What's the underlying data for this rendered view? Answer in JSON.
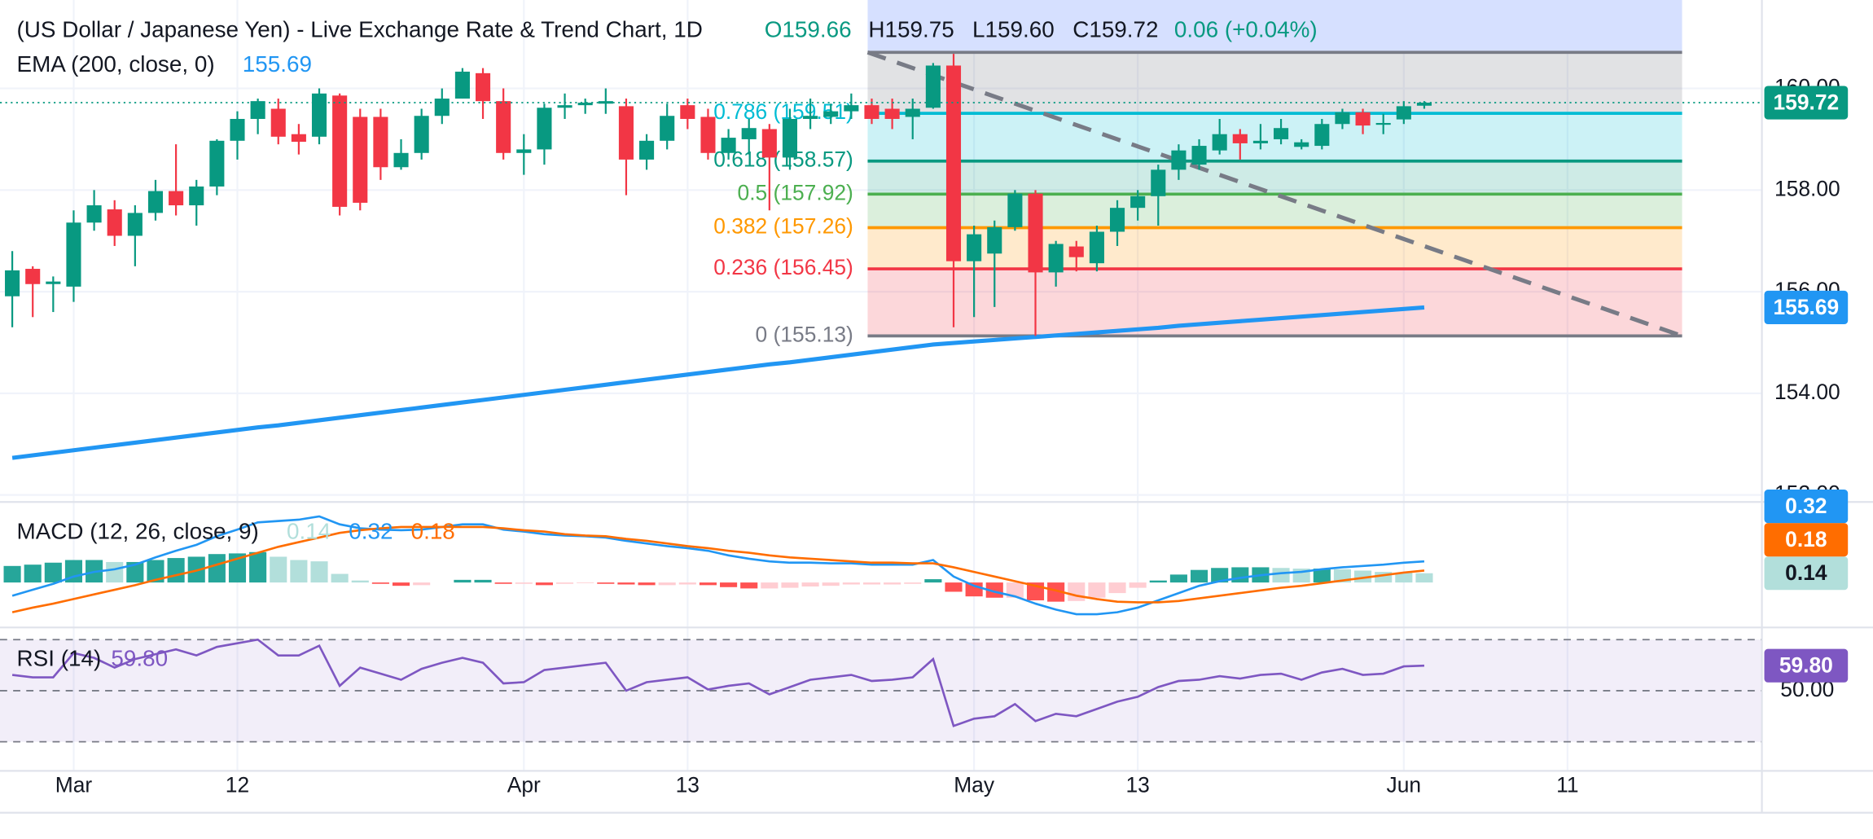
{
  "chart_data": [
    {
      "type": "candlestick",
      "title": "(US Dollar / Japanese Yen) - Live Exchange Rate & Trend Chart, 1D",
      "ohlc_legend": [
        "O159.66",
        "H159.75",
        "L159.60",
        "C159.72",
        "0.06 (+0.04%)"
      ],
      "x": [
        0,
        1,
        2,
        3,
        4,
        5,
        6,
        7,
        8,
        9,
        10,
        11,
        12,
        13,
        14,
        15,
        16,
        17,
        18,
        19,
        20,
        21,
        22,
        23,
        24,
        25,
        26,
        27,
        28,
        29,
        30,
        31,
        32,
        33,
        34,
        35,
        36,
        37,
        38,
        39,
        40,
        41,
        42,
        43,
        44,
        45,
        46,
        47,
        48,
        49,
        50,
        51,
        52,
        53,
        54,
        55,
        56,
        57,
        58,
        59,
        60,
        61,
        62,
        63,
        64,
        65,
        66,
        67,
        68,
        69
      ],
      "open": [
        155.91,
        156.45,
        156.15,
        156.1,
        157.36,
        157.62,
        157.1,
        157.55,
        157.98,
        157.7,
        158.07,
        158.97,
        159.4,
        159.6,
        159.1,
        159.05,
        159.86,
        159.44,
        159.44,
        158.45,
        158.73,
        159.46,
        159.8,
        160.3,
        159.75,
        158.73,
        158.8,
        159.62,
        159.67,
        159.7,
        159.65,
        158.6,
        158.97,
        159.67,
        159.44,
        158.73,
        159.0,
        159.2,
        158.64,
        159.4,
        159.44,
        159.55,
        159.67,
        159.6,
        159.44,
        159.62,
        160.45,
        156.6,
        156.75,
        157.27,
        157.93,
        156.38,
        156.89,
        156.56,
        157.18,
        157.65,
        157.88,
        158.4,
        158.5,
        158.78,
        159.1,
        158.92,
        159.0,
        158.85,
        158.87,
        159.3,
        159.53,
        159.3,
        159.39,
        159.66
      ],
      "high": [
        156.8,
        156.5,
        156.3,
        157.6,
        158.0,
        157.8,
        157.7,
        158.2,
        158.9,
        158.2,
        159.0,
        159.55,
        159.8,
        159.8,
        159.3,
        160.0,
        159.9,
        159.6,
        159.6,
        159.0,
        159.6,
        160.0,
        160.4,
        160.4,
        160.0,
        159.1,
        159.7,
        159.9,
        159.8,
        160.0,
        159.8,
        159.1,
        159.7,
        159.8,
        159.6,
        159.2,
        159.4,
        159.3,
        159.6,
        159.8,
        159.7,
        159.9,
        159.8,
        159.8,
        159.8,
        160.5,
        160.68,
        157.3,
        157.4,
        158.0,
        158.0,
        157.0,
        157.0,
        157.3,
        157.8,
        158.0,
        158.5,
        158.9,
        159.0,
        159.4,
        159.2,
        159.3,
        159.4,
        159.0,
        159.4,
        159.6,
        159.6,
        159.5,
        159.75,
        159.75
      ],
      "low": [
        155.3,
        155.5,
        155.6,
        155.8,
        157.2,
        156.9,
        156.5,
        157.4,
        157.5,
        157.3,
        157.9,
        158.6,
        159.1,
        158.9,
        158.7,
        158.9,
        157.5,
        157.6,
        158.2,
        158.4,
        158.6,
        159.3,
        159.8,
        159.4,
        158.6,
        158.3,
        158.5,
        159.4,
        159.5,
        159.5,
        157.9,
        158.4,
        158.8,
        159.2,
        158.6,
        158.6,
        158.7,
        157.6,
        158.4,
        159.2,
        159.3,
        159.4,
        159.3,
        159.2,
        159.0,
        159.6,
        155.3,
        155.5,
        155.7,
        157.2,
        155.13,
        156.1,
        156.4,
        156.4,
        156.9,
        157.4,
        157.3,
        158.2,
        158.4,
        158.7,
        158.6,
        158.8,
        158.9,
        158.8,
        158.8,
        159.2,
        159.1,
        159.1,
        159.3,
        159.6
      ],
      "close": [
        156.42,
        156.15,
        156.2,
        157.36,
        157.7,
        157.1,
        157.55,
        157.98,
        157.7,
        158.07,
        158.97,
        159.4,
        159.75,
        159.05,
        158.95,
        159.9,
        157.67,
        157.75,
        158.45,
        158.73,
        159.46,
        159.8,
        160.33,
        159.75,
        158.73,
        158.8,
        159.62,
        159.67,
        159.72,
        159.75,
        158.6,
        158.97,
        159.46,
        159.4,
        158.73,
        159.03,
        159.22,
        158.64,
        159.4,
        159.46,
        159.55,
        159.67,
        159.4,
        159.4,
        159.6,
        160.45,
        156.6,
        157.13,
        157.27,
        157.93,
        156.38,
        156.94,
        156.68,
        157.18,
        157.65,
        157.88,
        158.4,
        158.78,
        158.87,
        159.1,
        158.92,
        158.97,
        159.22,
        158.94,
        159.3,
        159.53,
        159.27,
        159.32,
        159.65,
        159.72
      ],
      "up_color": "#089981",
      "down_color": "#f23645",
      "series": [
        {
          "name": "EMA (200, close, 0)",
          "color": "#2196f3",
          "values": [
            152.73,
            152.78,
            152.83,
            152.88,
            152.93,
            152.98,
            153.03,
            153.08,
            153.13,
            153.18,
            153.23,
            153.28,
            153.33,
            153.37,
            153.42,
            153.47,
            153.52,
            153.57,
            153.62,
            153.67,
            153.72,
            153.77,
            153.82,
            153.87,
            153.92,
            153.97,
            154.02,
            154.07,
            154.12,
            154.17,
            154.22,
            154.27,
            154.32,
            154.37,
            154.42,
            154.47,
            154.52,
            154.57,
            154.61,
            154.66,
            154.71,
            154.76,
            154.81,
            154.86,
            154.91,
            154.96,
            154.99,
            155.02,
            155.05,
            155.08,
            155.11,
            155.14,
            155.17,
            155.2,
            155.23,
            155.26,
            155.29,
            155.33,
            155.36,
            155.39,
            155.42,
            155.45,
            155.48,
            155.51,
            155.54,
            155.57,
            155.6,
            155.63,
            155.66,
            155.69
          ]
        }
      ],
      "fibonacci": {
        "x": [
          41.8,
          81.6
        ],
        "top": 160.71,
        "top_color": "#787b86",
        "levels": [
          {
            "label": "0.786 (159.51)",
            "value": 159.51,
            "color": "#00bcd4"
          },
          {
            "label": "0.618 (158.57)",
            "value": 158.57,
            "color": "#089981"
          },
          {
            "label": "0.5 (157.92)",
            "value": 157.92,
            "color": "#4caf50"
          },
          {
            "label": "0.382 (157.26)",
            "value": 157.26,
            "color": "#ff9800"
          },
          {
            "label": "0.236 (156.45)",
            "value": 156.45,
            "color": "#f23645"
          },
          {
            "label": "0 (155.13)",
            "value": 155.13,
            "color": "#787b86"
          }
        ]
      },
      "trendline": {
        "x": [
          41.8,
          81.6
        ],
        "values": [
          160.71,
          155.13
        ],
        "color": "#787b86"
      },
      "xlim": [
        -0.6,
        85.5
      ],
      "xticks": [
        {
          "value": 3,
          "label": "Mar"
        },
        {
          "value": 11,
          "label": "12"
        },
        {
          "value": 25,
          "label": "Apr"
        },
        {
          "value": 33,
          "label": "13"
        },
        {
          "value": 47,
          "label": "May"
        },
        {
          "value": 55,
          "label": "13"
        },
        {
          "value": 68,
          "label": "Jun"
        },
        {
          "value": 76,
          "label": "11"
        }
      ],
      "ylim": [
        151.98,
        161.74
      ],
      "yticks": [
        {
          "value": 152,
          "label": "152.00"
        },
        {
          "value": 154,
          "label": "154.00"
        },
        {
          "value": 156,
          "label": "156.00"
        },
        {
          "value": 158,
          "label": "158.00"
        },
        {
          "value": 160,
          "label": "160.00"
        }
      ],
      "grid": true
    },
    {
      "type": "macd",
      "title": "MACD (12, 26, close, 9)",
      "series": [
        {
          "kind": "histogram",
          "color": "#b2dfdb",
          "bar_colors": [
            "#26a69a",
            "#b2dfdb",
            "#ff5252",
            "#ffcdd2"
          ],
          "values": [
            0.25,
            0.27,
            0.3,
            0.34,
            0.34,
            0.31,
            0.31,
            0.34,
            0.37,
            0.39,
            0.43,
            0.44,
            0.46,
            0.39,
            0.34,
            0.32,
            0.13,
            0.03,
            -0.02,
            -0.05,
            -0.04,
            0,
            0.04,
            0.04,
            -0.02,
            -0.02,
            -0.04,
            -0.02,
            -0.01,
            -0.02,
            -0.03,
            -0.04,
            -0.04,
            -0.03,
            -0.04,
            -0.07,
            -0.09,
            -0.09,
            -0.08,
            -0.06,
            -0.05,
            -0.03,
            -0.03,
            -0.03,
            -0.02,
            0.05,
            -0.14,
            -0.21,
            -0.23,
            -0.23,
            -0.27,
            -0.29,
            -0.28,
            -0.23,
            -0.16,
            -0.08,
            0.03,
            0.12,
            0.19,
            0.22,
            0.23,
            0.23,
            0.22,
            0.21,
            0.21,
            0.2,
            0.18,
            0.16,
            0.15,
            0.14
          ]
        },
        {
          "kind": "line",
          "color": "#2196f3",
          "values": [
            -0.2,
            -0.11,
            -0.02,
            0.09,
            0.16,
            0.2,
            0.27,
            0.38,
            0.48,
            0.57,
            0.7,
            0.8,
            0.91,
            0.93,
            0.95,
            1.0,
            0.88,
            0.82,
            0.8,
            0.79,
            0.8,
            0.84,
            0.88,
            0.88,
            0.8,
            0.77,
            0.73,
            0.71,
            0.7,
            0.68,
            0.63,
            0.59,
            0.55,
            0.52,
            0.48,
            0.41,
            0.36,
            0.32,
            0.3,
            0.3,
            0.29,
            0.29,
            0.27,
            0.27,
            0.27,
            0.34,
            0.09,
            -0.05,
            -0.14,
            -0.21,
            -0.32,
            -0.41,
            -0.48,
            -0.48,
            -0.45,
            -0.38,
            -0.27,
            -0.16,
            -0.05,
            0.02,
            0.07,
            0.11,
            0.14,
            0.16,
            0.2,
            0.23,
            0.25,
            0.27,
            0.3,
            0.32
          ]
        },
        {
          "kind": "line",
          "color": "#ff6d00",
          "values": [
            -0.45,
            -0.38,
            -0.32,
            -0.25,
            -0.18,
            -0.11,
            -0.04,
            0.04,
            0.11,
            0.18,
            0.27,
            0.36,
            0.45,
            0.54,
            0.61,
            0.68,
            0.75,
            0.79,
            0.82,
            0.84,
            0.84,
            0.84,
            0.84,
            0.84,
            0.82,
            0.79,
            0.77,
            0.73,
            0.71,
            0.7,
            0.66,
            0.63,
            0.59,
            0.55,
            0.52,
            0.48,
            0.45,
            0.41,
            0.38,
            0.36,
            0.34,
            0.32,
            0.3,
            0.3,
            0.29,
            0.29,
            0.23,
            0.16,
            0.09,
            0.02,
            -0.05,
            -0.12,
            -0.2,
            -0.25,
            -0.29,
            -0.3,
            -0.3,
            -0.28,
            -0.24,
            -0.2,
            -0.16,
            -0.12,
            -0.08,
            -0.05,
            -0.01,
            0.03,
            0.07,
            0.11,
            0.15,
            0.18
          ]
        }
      ],
      "ylim": [
        -0.68,
        1.2
      ]
    },
    {
      "type": "rsi",
      "title": "RSI (14)",
      "series": [
        {
          "color": "#7e57c2",
          "values": [
            56.19,
            55.24,
            55.24,
            64.76,
            62.86,
            59.05,
            62.38,
            64.29,
            66.19,
            63.81,
            67.14,
            68.57,
            70.0,
            63.81,
            63.81,
            67.62,
            51.9,
            59.05,
            56.67,
            54.29,
            58.57,
            60.95,
            62.86,
            60.95,
            52.86,
            53.33,
            58.1,
            59.05,
            60.0,
            60.95,
            50.0,
            53.33,
            54.29,
            55.24,
            50.48,
            51.9,
            52.86,
            48.57,
            51.43,
            54.29,
            55.24,
            56.19,
            53.81,
            54.29,
            55.24,
            62.38,
            36.19,
            39.05,
            40.0,
            44.76,
            38.1,
            40.95,
            40.0,
            42.86,
            45.71,
            47.62,
            51.43,
            53.81,
            54.29,
            55.71,
            54.76,
            56.19,
            56.67,
            54.29,
            57.14,
            58.57,
            56.19,
            56.67,
            59.52,
            59.8
          ],
          "value_labels": [
            null,
            null,
            null,
            null,
            null,
            null,
            null,
            null,
            null,
            null,
            null,
            null,
            null,
            null,
            null,
            null,
            null,
            null,
            null,
            null,
            null,
            null,
            null,
            null,
            null,
            null,
            null,
            null,
            null,
            null,
            null,
            null,
            null,
            null,
            null,
            null,
            null,
            null,
            null,
            null,
            null,
            null,
            null,
            null,
            null,
            null,
            null,
            null,
            null,
            null,
            null,
            null,
            null,
            null,
            null,
            null,
            null,
            null,
            null,
            null,
            null,
            null,
            null,
            null,
            null,
            null,
            null,
            null,
            null,
            "59.80"
          ]
        }
      ],
      "band": [
        30,
        70
      ],
      "ylim": [
        18.6,
        74.3
      ],
      "yticks": [
        {
          "value": 50,
          "label": "50.00"
        }
      ]
    }
  ]
}
